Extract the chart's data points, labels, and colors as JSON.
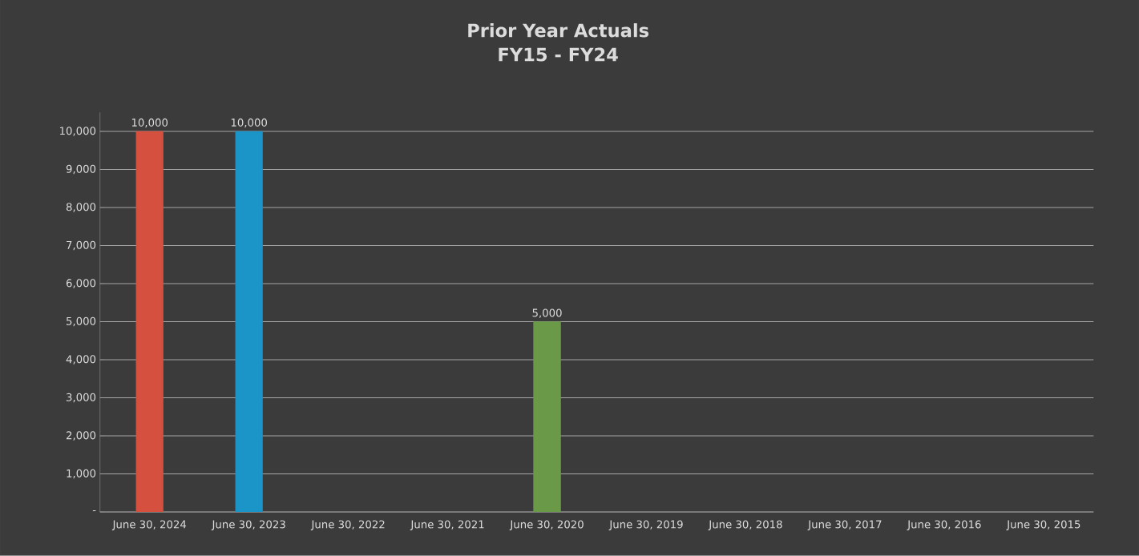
{
  "chart_data": {
    "type": "bar",
    "title": "Prior Year Actuals",
    "subtitle": "FY15 - FY24",
    "categories": [
      "June 30, 2024",
      "June 30, 2023",
      "June 30, 2022",
      "June 30, 2021",
      "June 30, 2020",
      "June 30, 2019",
      "June 30, 2018",
      "June 30, 2017",
      "June 30, 2016",
      "June 30, 2015"
    ],
    "values": [
      10000,
      10000,
      null,
      null,
      5000,
      null,
      null,
      null,
      null,
      null
    ],
    "colors": [
      "#d5503f",
      "#1b94c8",
      null,
      null,
      "#6a9a48",
      null,
      null,
      null,
      null,
      null
    ],
    "value_labels": [
      "10,000",
      "10,000",
      null,
      null,
      "5,000",
      null,
      null,
      null,
      null,
      null
    ],
    "ylim": [
      0,
      10500
    ],
    "yticks": [
      {
        "value": 0,
        "label": "-"
      },
      {
        "value": 1000,
        "label": "1,000"
      },
      {
        "value": 2000,
        "label": "2,000"
      },
      {
        "value": 3000,
        "label": "3,000"
      },
      {
        "value": 4000,
        "label": "4,000"
      },
      {
        "value": 5000,
        "label": "5,000"
      },
      {
        "value": 6000,
        "label": "6,000"
      },
      {
        "value": 7000,
        "label": "7,000"
      },
      {
        "value": 8000,
        "label": "8,000"
      },
      {
        "value": 9000,
        "label": "9,000"
      },
      {
        "value": 10000,
        "label": "10,000"
      }
    ],
    "grid": "y"
  }
}
